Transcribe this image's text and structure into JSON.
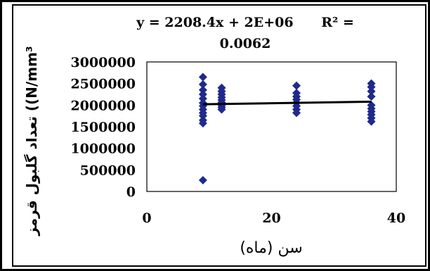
{
  "chart_data": {
    "type": "scatter",
    "title_line1": "y = 2208.4x + 2E+06      R² =",
    "title_line2": "0.0062",
    "xlabel": "سن (ماه)",
    "ylabel": "تعداد گلبول قرمز ((N/mm³",
    "xlim": [
      0,
      40
    ],
    "ylim": [
      0,
      3000000
    ],
    "x_ticks": [
      "0",
      "20",
      "40"
    ],
    "y_ticks": [
      "0",
      "500000",
      "1000000",
      "1500000",
      "2000000",
      "2500000",
      "3000000"
    ],
    "grid": false,
    "trendline": {
      "slope": 2208.4,
      "intercept": 2000000,
      "x_range": [
        9,
        36
      ]
    },
    "marker_color": "#1f2a8c",
    "trend_color": "#000000",
    "points": [
      {
        "x": 9,
        "y": 2650000
      },
      {
        "x": 9,
        "y": 2480000
      },
      {
        "x": 9,
        "y": 2350000
      },
      {
        "x": 9,
        "y": 2250000
      },
      {
        "x": 9,
        "y": 2150000
      },
      {
        "x": 9,
        "y": 2050000
      },
      {
        "x": 9,
        "y": 1980000
      },
      {
        "x": 9,
        "y": 1900000
      },
      {
        "x": 9,
        "y": 1820000
      },
      {
        "x": 9,
        "y": 1750000
      },
      {
        "x": 9,
        "y": 1650000
      },
      {
        "x": 9,
        "y": 1580000
      },
      {
        "x": 9,
        "y": 260000
      },
      {
        "x": 12,
        "y": 2400000
      },
      {
        "x": 12,
        "y": 2320000
      },
      {
        "x": 12,
        "y": 2250000
      },
      {
        "x": 12,
        "y": 2180000
      },
      {
        "x": 12,
        "y": 2120000
      },
      {
        "x": 12,
        "y": 2060000
      },
      {
        "x": 12,
        "y": 2000000
      },
      {
        "x": 12,
        "y": 1950000
      },
      {
        "x": 12,
        "y": 1900000
      },
      {
        "x": 24,
        "y": 2450000
      },
      {
        "x": 24,
        "y": 2280000
      },
      {
        "x": 24,
        "y": 2200000
      },
      {
        "x": 24,
        "y": 2130000
      },
      {
        "x": 24,
        "y": 2060000
      },
      {
        "x": 24,
        "y": 1980000
      },
      {
        "x": 24,
        "y": 1900000
      },
      {
        "x": 24,
        "y": 1820000
      },
      {
        "x": 36,
        "y": 2500000
      },
      {
        "x": 36,
        "y": 2420000
      },
      {
        "x": 36,
        "y": 2320000
      },
      {
        "x": 36,
        "y": 2200000
      },
      {
        "x": 36,
        "y": 2000000
      },
      {
        "x": 36,
        "y": 1920000
      },
      {
        "x": 36,
        "y": 1850000
      },
      {
        "x": 36,
        "y": 1780000
      },
      {
        "x": 36,
        "y": 1700000
      },
      {
        "x": 36,
        "y": 1620000
      }
    ]
  }
}
